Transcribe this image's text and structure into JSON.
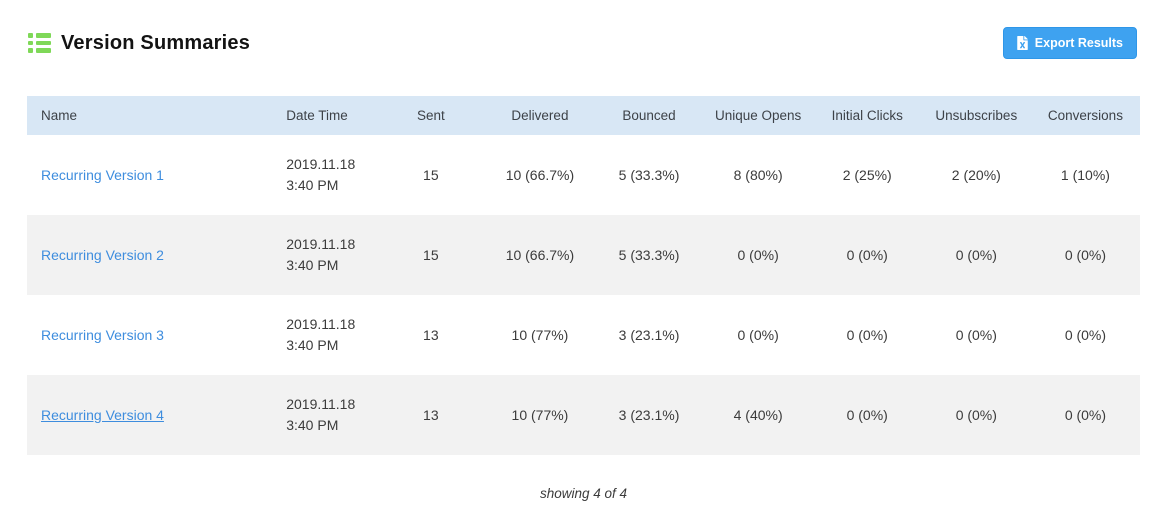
{
  "colors": {
    "accent_green": "#7fd858",
    "button_blue": "#3ea2f0",
    "button_border": "#2e96e8",
    "header_bg": "#d8e7f5",
    "alt_row_bg": "#f2f2f2",
    "link_blue": "#3e8dde"
  },
  "header": {
    "title": "Version Summaries",
    "title_icon": "list-icon",
    "export_button": {
      "label": "Export Results",
      "icon": "excel-file-icon"
    }
  },
  "table": {
    "columns": [
      {
        "key": "name",
        "label": "Name"
      },
      {
        "key": "date_time",
        "label": "Date Time"
      },
      {
        "key": "sent",
        "label": "Sent"
      },
      {
        "key": "delivered",
        "label": "Delivered"
      },
      {
        "key": "bounced",
        "label": "Bounced"
      },
      {
        "key": "unique_opens",
        "label": "Unique Opens"
      },
      {
        "key": "initial_clicks",
        "label": "Initial Clicks"
      },
      {
        "key": "unsubscribes",
        "label": "Unsubscribes"
      },
      {
        "key": "conversions",
        "label": "Conversions"
      }
    ],
    "rows": [
      {
        "name": "Recurring Version 1",
        "name_underlined": false,
        "date_line1": "2019.11.18",
        "date_line2": "3:40 PM",
        "sent": "15",
        "delivered": "10 (66.7%)",
        "bounced": "5 (33.3%)",
        "unique_opens": "8 (80%)",
        "initial_clicks": "2 (25%)",
        "unsubscribes": "2 (20%)",
        "conversions": "1 (10%)"
      },
      {
        "name": "Recurring Version 2",
        "name_underlined": false,
        "date_line1": "2019.11.18",
        "date_line2": "3:40 PM",
        "sent": "15",
        "delivered": "10 (66.7%)",
        "bounced": "5 (33.3%)",
        "unique_opens": "0 (0%)",
        "initial_clicks": "0 (0%)",
        "unsubscribes": "0 (0%)",
        "conversions": "0 (0%)"
      },
      {
        "name": "Recurring Version 3",
        "name_underlined": false,
        "date_line1": "2019.11.18",
        "date_line2": "3:40 PM",
        "sent": "13",
        "delivered": "10 (77%)",
        "bounced": "3 (23.1%)",
        "unique_opens": "0 (0%)",
        "initial_clicks": "0 (0%)",
        "unsubscribes": "0 (0%)",
        "conversions": "0 (0%)"
      },
      {
        "name": "Recurring Version 4",
        "name_underlined": true,
        "date_line1": "2019.11.18",
        "date_line2": "3:40 PM",
        "sent": "13",
        "delivered": "10 (77%)",
        "bounced": "3 (23.1%)",
        "unique_opens": "4 (40%)",
        "initial_clicks": "0 (0%)",
        "unsubscribes": "0 (0%)",
        "conversions": "0 (0%)"
      }
    ]
  },
  "footer": {
    "status": "showing 4 of 4"
  }
}
